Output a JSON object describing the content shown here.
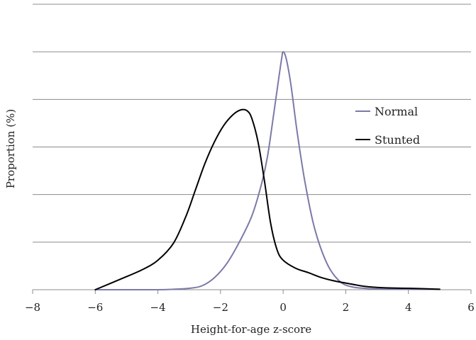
{
  "chart_data": {
    "type": "line",
    "title": "",
    "xlabel": "Height-for-age z-score",
    "ylabel": "Proportion (%)",
    "xlim": [
      -8,
      6
    ],
    "ylim": [
      0,
      6
    ],
    "x_ticks": [
      -8,
      -6,
      -4,
      -2,
      0,
      2,
      4,
      6
    ],
    "x_tick_labels": [
      "−8",
      "−6",
      "−4",
      "−2",
      "0",
      "2",
      "4",
      "6"
    ],
    "y_gridlines": [
      1,
      2,
      3,
      4,
      5,
      6
    ],
    "y_tick_labels_shown": false,
    "grid": true,
    "legend": "right",
    "series": [
      {
        "name": "Normal",
        "color": "#7b7aa8",
        "points": [
          [
            -6,
            0
          ],
          [
            -5,
            0
          ],
          [
            -4,
            0
          ],
          [
            -3.5,
            0.01
          ],
          [
            -3,
            0.03
          ],
          [
            -2.6,
            0.08
          ],
          [
            -2.2,
            0.25
          ],
          [
            -1.8,
            0.55
          ],
          [
            -1.4,
            1.0
          ],
          [
            -1.0,
            1.55
          ],
          [
            -0.7,
            2.2
          ],
          [
            -0.5,
            2.8
          ],
          [
            -0.3,
            3.7
          ],
          [
            -0.15,
            4.4
          ],
          [
            -0.05,
            4.85
          ],
          [
            0,
            5.0
          ],
          [
            0.1,
            4.85
          ],
          [
            0.25,
            4.3
          ],
          [
            0.45,
            3.3
          ],
          [
            0.7,
            2.25
          ],
          [
            1.0,
            1.3
          ],
          [
            1.4,
            0.55
          ],
          [
            1.8,
            0.18
          ],
          [
            2.2,
            0.06
          ],
          [
            2.8,
            0.02
          ],
          [
            3.5,
            0.01
          ],
          [
            5,
            0.01
          ]
        ]
      },
      {
        "name": "Stunted",
        "color": "#000000",
        "points": [
          [
            -6,
            0
          ],
          [
            -5.2,
            0.22
          ],
          [
            -4.5,
            0.42
          ],
          [
            -4,
            0.62
          ],
          [
            -3.5,
            0.98
          ],
          [
            -3.1,
            1.55
          ],
          [
            -2.8,
            2.1
          ],
          [
            -2.5,
            2.65
          ],
          [
            -2.2,
            3.1
          ],
          [
            -1.9,
            3.45
          ],
          [
            -1.6,
            3.68
          ],
          [
            -1.35,
            3.78
          ],
          [
            -1.15,
            3.76
          ],
          [
            -1.0,
            3.6
          ],
          [
            -0.8,
            3.1
          ],
          [
            -0.6,
            2.3
          ],
          [
            -0.4,
            1.4
          ],
          [
            -0.2,
            0.85
          ],
          [
            0,
            0.62
          ],
          [
            0.4,
            0.45
          ],
          [
            0.8,
            0.36
          ],
          [
            1.2,
            0.26
          ],
          [
            1.6,
            0.19
          ],
          [
            2.0,
            0.14
          ],
          [
            2.6,
            0.07
          ],
          [
            3.2,
            0.04
          ],
          [
            4.0,
            0.03
          ],
          [
            5,
            0.01
          ]
        ]
      }
    ]
  }
}
